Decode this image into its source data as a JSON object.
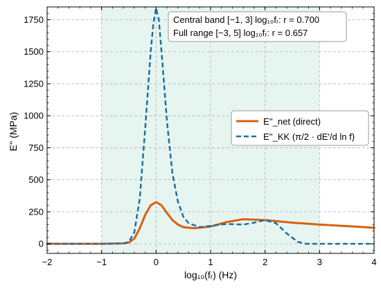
{
  "chart_data": {
    "type": "line",
    "xlabel": "log₁₀(fᵣ) (Hz)",
    "ylabel": "E'' (MPa)",
    "xlim": [
      -2,
      4
    ],
    "ylim": [
      -75,
      1850
    ],
    "x_ticks": [
      -2,
      -1,
      0,
      1,
      2,
      3,
      4
    ],
    "y_ticks": [
      0,
      250,
      500,
      750,
      1000,
      1250,
      1500,
      1750
    ],
    "x_tick_labels": [
      "−2",
      "−1",
      "0",
      "1",
      "2",
      "3",
      "4"
    ],
    "y_tick_labels": [
      "0",
      "250",
      "500",
      "750",
      "1000",
      "1250",
      "1500",
      "1750"
    ],
    "grid": true,
    "legend_position": "center-right",
    "shaded_band": {
      "x_start": -1,
      "x_end": 3,
      "color": "#e7f5f1"
    },
    "annotation": [
      "Central band [−1, 3] log₁₀fᵣ: r = 0.700",
      "Full range [−3, 5] log₁₀fᵣ: r = 0.657"
    ],
    "series": [
      {
        "name": "E''_net (direct)",
        "color": "#d95f0e",
        "style": "solid",
        "x": [
          -2,
          -1,
          -0.6,
          -0.5,
          -0.4,
          -0.3,
          -0.2,
          -0.1,
          0,
          0.1,
          0.2,
          0.3,
          0.4,
          0.5,
          0.7,
          1,
          1.3,
          1.6,
          2,
          2.5,
          3,
          3.5,
          4
        ],
        "y": [
          0,
          0,
          3,
          10,
          40,
          120,
          225,
          300,
          325,
          300,
          240,
          185,
          150,
          130,
          122,
          135,
          170,
          192,
          185,
          165,
          150,
          138,
          125
        ]
      },
      {
        "name": "E''_KK (π/2 · dE'/d ln f)",
        "color": "#1a6fa3",
        "style": "dashed",
        "x": [
          -2,
          -1,
          -0.6,
          -0.5,
          -0.4,
          -0.3,
          -0.2,
          -0.1,
          -0.05,
          0,
          0.05,
          0.1,
          0.2,
          0.3,
          0.4,
          0.5,
          0.6,
          0.8,
          1,
          1.3,
          1.6,
          1.8,
          2,
          2.2,
          2.4,
          2.6,
          2.75,
          3,
          4
        ],
        "y": [
          0,
          0,
          3,
          15,
          90,
          350,
          900,
          1500,
          1720,
          1840,
          1750,
          1500,
          950,
          550,
          330,
          210,
          160,
          130,
          140,
          155,
          150,
          165,
          185,
          160,
          80,
          15,
          0,
          0,
          0
        ]
      }
    ]
  }
}
